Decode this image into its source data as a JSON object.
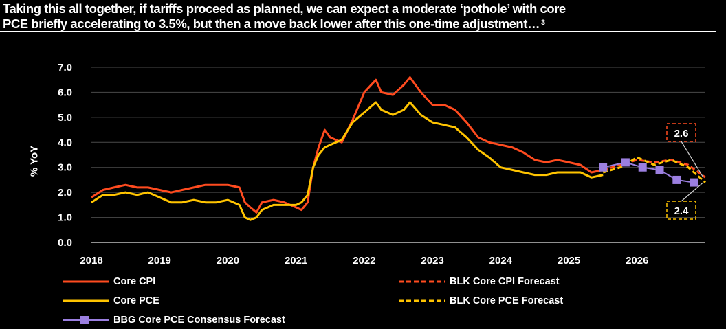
{
  "header": {
    "subtitle_line1": "Taking this all together, if tariffs proceed as planned, we can expect a moderate ‘pothole’ with core",
    "subtitle_line2": "PCE briefly accelerating to 3.5%, but then a move back lower after this one-time adjustment…",
    "footnote": "3"
  },
  "chart_data": {
    "type": "line",
    "ylabel": "% YoY",
    "ylim": [
      0,
      7
    ],
    "yticks": [
      "0.0",
      "1.0",
      "2.0",
      "3.0",
      "4.0",
      "5.0",
      "6.0",
      "7.0"
    ],
    "xlim": [
      2018.0,
      2027.0
    ],
    "xticks": [
      "2018",
      "2019",
      "2020",
      "2021",
      "2022",
      "2023",
      "2024",
      "2025",
      "2026"
    ],
    "grid": "horizontal",
    "legend_position": "bottom",
    "series": [
      {
        "name": "Core CPI",
        "style": "solid",
        "color": "#ff4b1f",
        "x": [
          2018.0,
          2018.17,
          2018.33,
          2018.5,
          2018.67,
          2018.83,
          2019.0,
          2019.17,
          2019.33,
          2019.5,
          2019.67,
          2019.83,
          2020.0,
          2020.17,
          2020.25,
          2020.33,
          2020.42,
          2020.5,
          2020.67,
          2020.83,
          2021.0,
          2021.08,
          2021.17,
          2021.25,
          2021.33,
          2021.42,
          2021.5,
          2021.67,
          2021.83,
          2022.0,
          2022.17,
          2022.25,
          2022.42,
          2022.58,
          2022.67,
          2022.83,
          2023.0,
          2023.17,
          2023.33,
          2023.5,
          2023.67,
          2023.83,
          2024.0,
          2024.17,
          2024.33,
          2024.5,
          2024.67,
          2024.83,
          2025.0,
          2025.17,
          2025.33,
          2025.5
        ],
        "y": [
          1.8,
          2.1,
          2.2,
          2.3,
          2.2,
          2.2,
          2.1,
          2.0,
          2.1,
          2.2,
          2.3,
          2.3,
          2.3,
          2.2,
          1.6,
          1.4,
          1.2,
          1.6,
          1.7,
          1.6,
          1.4,
          1.3,
          1.6,
          3.0,
          3.8,
          4.5,
          4.2,
          4.0,
          4.9,
          6.0,
          6.5,
          6.0,
          5.9,
          6.3,
          6.6,
          6.0,
          5.5,
          5.5,
          5.3,
          4.8,
          4.2,
          4.0,
          3.9,
          3.8,
          3.6,
          3.3,
          3.2,
          3.3,
          3.2,
          3.1,
          2.8,
          2.9
        ]
      },
      {
        "name": "Core PCE",
        "style": "solid",
        "color": "#ffc400",
        "x": [
          2018.0,
          2018.17,
          2018.33,
          2018.5,
          2018.67,
          2018.83,
          2019.0,
          2019.17,
          2019.33,
          2019.5,
          2019.67,
          2019.83,
          2020.0,
          2020.17,
          2020.25,
          2020.33,
          2020.42,
          2020.5,
          2020.67,
          2020.83,
          2021.0,
          2021.08,
          2021.17,
          2021.25,
          2021.33,
          2021.42,
          2021.5,
          2021.67,
          2021.83,
          2022.0,
          2022.17,
          2022.25,
          2022.42,
          2022.58,
          2022.67,
          2022.83,
          2023.0,
          2023.17,
          2023.33,
          2023.5,
          2023.67,
          2023.83,
          2024.0,
          2024.17,
          2024.33,
          2024.5,
          2024.67,
          2024.83,
          2025.0,
          2025.17,
          2025.33,
          2025.5
        ],
        "y": [
          1.6,
          1.9,
          1.9,
          2.0,
          1.9,
          2.0,
          1.8,
          1.6,
          1.6,
          1.7,
          1.6,
          1.6,
          1.7,
          1.5,
          1.0,
          0.9,
          1.0,
          1.3,
          1.5,
          1.5,
          1.5,
          1.6,
          1.9,
          3.0,
          3.5,
          3.8,
          3.9,
          4.1,
          4.8,
          5.2,
          5.6,
          5.3,
          5.1,
          5.3,
          5.6,
          5.1,
          4.8,
          4.7,
          4.6,
          4.2,
          3.7,
          3.4,
          3.0,
          2.9,
          2.8,
          2.7,
          2.7,
          2.8,
          2.8,
          2.8,
          2.6,
          2.7
        ]
      },
      {
        "name": "BLK Core CPI Forecast",
        "style": "dashed",
        "color": "#ff4b1f",
        "x": [
          2025.5,
          2025.75,
          2026.0,
          2026.25,
          2026.5,
          2026.75,
          2027.0
        ],
        "y": [
          2.9,
          3.1,
          3.3,
          3.2,
          3.3,
          3.1,
          2.6
        ]
      },
      {
        "name": "BLK Core PCE Forecast",
        "style": "dashed",
        "color": "#ffc400",
        "x": [
          2025.5,
          2025.75,
          2026.0,
          2026.25,
          2026.5,
          2026.75,
          2027.0
        ],
        "y": [
          2.8,
          3.0,
          3.4,
          3.1,
          3.3,
          3.0,
          2.4
        ]
      },
      {
        "name": "BBG Core PCE Consensus Forecast",
        "style": "marker",
        "color": "#9b7fe0",
        "x": [
          2025.5,
          2025.83,
          2026.08,
          2026.33,
          2026.58,
          2026.83
        ],
        "y": [
          3.0,
          3.2,
          3.0,
          2.9,
          2.5,
          2.4
        ]
      }
    ],
    "annotations": [
      {
        "text": "2.6",
        "box_color": "#ff4b1f",
        "target_y": 2.6
      },
      {
        "text": "2.4",
        "box_color": "#ffc400",
        "target_y": 2.4
      }
    ]
  }
}
